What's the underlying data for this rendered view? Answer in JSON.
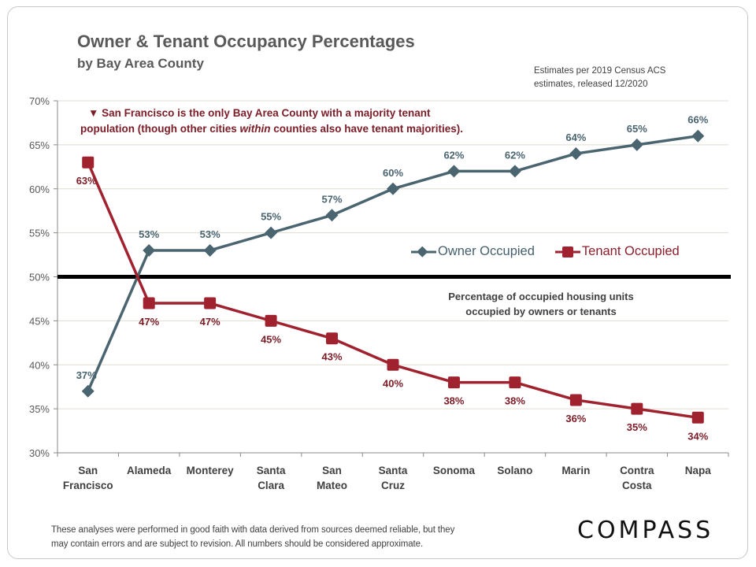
{
  "header": {
    "title": "Owner & Tenant Occupancy Percentages",
    "subtitle": "by Bay Area County",
    "source_line1": "Estimates per 2019 Census ACS",
    "source_line2": "estimates, released 12/2020"
  },
  "annotation": {
    "marker": "▼",
    "line1": "San Francisco is the only Bay Area County with a majority tenant",
    "line2_pre": "population (though other cities ",
    "line2_em": "within",
    "line2_post": " counties also have tenant majorities)."
  },
  "axis_note": {
    "line1": "Percentage of occupied housing units",
    "line2": "occupied by owners or tenants"
  },
  "footer": {
    "disclaimer_line1": "These analyses were performed in good faith with data derived from sources deemed reliable, but they",
    "disclaimer_line2": "may contain errors and are subject to revision.  All numbers should be considered approximate.",
    "logo": "COMPASS"
  },
  "colors": {
    "owner": "#4a6470",
    "tenant": "#a0222f",
    "tenant_label": "#7b1c26",
    "reference_line": "#000000",
    "grid": "#e0ddd0"
  },
  "chart_data": {
    "type": "line",
    "title": "Owner & Tenant Occupancy Percentages",
    "subtitle": "by Bay Area County",
    "xlabel": "",
    "ylabel": "",
    "ylim": [
      30,
      70
    ],
    "yticks": [
      30,
      35,
      40,
      45,
      50,
      55,
      60,
      65,
      70
    ],
    "ytick_labels": [
      "30%",
      "35%",
      "40%",
      "45%",
      "50%",
      "55%",
      "60%",
      "65%",
      "70%"
    ],
    "grid": true,
    "reference_line": 50,
    "legend_position": "center-right",
    "categories": [
      [
        "San",
        "Francisco"
      ],
      [
        "Alameda"
      ],
      [
        "Monterey"
      ],
      [
        "Santa",
        "Clara"
      ],
      [
        "San",
        "Mateo"
      ],
      [
        "Santa",
        "Cruz"
      ],
      [
        "Sonoma"
      ],
      [
        "Solano"
      ],
      [
        "Marin"
      ],
      [
        "Contra",
        "Costa"
      ],
      [
        "Napa"
      ]
    ],
    "series": [
      {
        "name": "Owner Occupied",
        "marker": "diamond",
        "values": [
          37,
          53,
          53,
          55,
          57,
          60,
          62,
          62,
          64,
          65,
          66
        ]
      },
      {
        "name": "Tenant Occupied",
        "marker": "square",
        "values": [
          63,
          47,
          47,
          45,
          43,
          40,
          38,
          38,
          36,
          35,
          34
        ]
      }
    ]
  }
}
